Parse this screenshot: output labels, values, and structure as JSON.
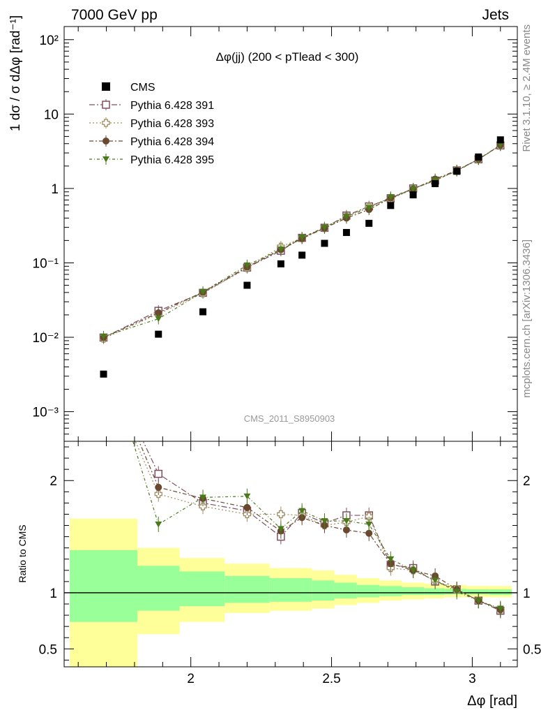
{
  "chart_data": {
    "type": "scatter",
    "title": "Δφ(jj) (200 < pTlead <  300)",
    "top_left_label": "7000 GeV pp",
    "top_right_label": "Jets",
    "ylabel_main": "1 dσ / σ dΔφ [rad⁻¹]",
    "ylabel_ratio": "Ratio to CMS",
    "xlabel": "Δφ [rad]",
    "analysis_label": "CMS_2011_S8950903",
    "side_label_top": "Rivet 3.1.10, ≥ 2.4M events",
    "side_label_bottom": "mcplots.cern.ch [arXiv:1306.3436]",
    "x_range": [
      1.55,
      3.16
    ],
    "y_range_main": [
      0.0004,
      150
    ],
    "y_scale_main": "log",
    "y_range_ratio": [
      0.34,
      2.35
    ],
    "x_ticks": [
      "2",
      "2.5",
      "3"
    ],
    "y_ticks_main": [
      "10⁻³",
      "10⁻²",
      "10⁻¹",
      "1",
      "10",
      "10²"
    ],
    "y_ticks_ratio": [
      "0.5",
      "1",
      "2"
    ],
    "legend_position": "top-left",
    "colors": {
      "s391": "#7d5060",
      "s393": "#a08a60",
      "s394": "#6a4830",
      "s395": "#4a7a1a",
      "band_inner": "#99ff99",
      "band_outer": "#ffff99"
    },
    "legend": [
      "CMS",
      "Pythia 6.428 391",
      "Pythia 6.428 393",
      "Pythia 6.428 394",
      "Pythia 6.428 395"
    ],
    "x": [
      1.69,
      1.885,
      2.043,
      2.2,
      2.32,
      2.395,
      2.475,
      2.553,
      2.633,
      2.71,
      2.79,
      2.868,
      2.945,
      3.022,
      3.1
    ],
    "cms": [
      0.0032,
      0.011,
      0.022,
      0.05,
      0.097,
      0.127,
      0.183,
      0.256,
      0.34,
      0.59,
      0.82,
      1.16,
      1.7,
      2.65,
      4.5
    ],
    "series": [
      {
        "name": "Pythia 6.428 391",
        "ratio": [
          3.1,
          2.06,
          1.8,
          1.73,
          1.5,
          1.71,
          1.62,
          1.69,
          1.69,
          1.25,
          1.22,
          1.1,
          1.03,
          0.93,
          0.84
        ]
      },
      {
        "name": "Pythia 6.428 393",
        "ratio": [
          3.0,
          1.88,
          1.77,
          1.7,
          1.7,
          1.69,
          1.6,
          1.63,
          1.68,
          1.22,
          1.2,
          1.11,
          1.03,
          0.93,
          0.85
        ]
      },
      {
        "name": "Pythia 6.428 394",
        "ratio": [
          3.1,
          1.94,
          1.84,
          1.76,
          1.55,
          1.67,
          1.6,
          1.56,
          1.53,
          1.26,
          1.2,
          1.15,
          1.03,
          0.93,
          0.85
        ]
      },
      {
        "name": "Pythia 6.428 395",
        "ratio": [
          3.2,
          1.61,
          1.85,
          1.86,
          1.57,
          1.73,
          1.64,
          1.64,
          1.61,
          1.3,
          1.2,
          1.11,
          1.01,
          0.93,
          0.86
        ]
      }
    ],
    "bands": [
      {
        "x0": 1.57,
        "x1": 1.81,
        "inner": [
          0.74,
          1.38
        ],
        "outer": [
          0.3,
          1.66
        ]
      },
      {
        "x0": 1.81,
        "x1": 1.96,
        "inner": [
          0.84,
          1.24
        ],
        "outer": [
          0.63,
          1.4
        ]
      },
      {
        "x0": 1.96,
        "x1": 2.12,
        "inner": [
          0.88,
          1.19
        ],
        "outer": [
          0.74,
          1.31
        ]
      },
      {
        "x0": 2.12,
        "x1": 2.28,
        "inner": [
          0.91,
          1.15
        ],
        "outer": [
          0.82,
          1.26
        ]
      },
      {
        "x0": 2.28,
        "x1": 2.43,
        "inner": [
          0.92,
          1.13
        ],
        "outer": [
          0.84,
          1.22
        ]
      },
      {
        "x0": 2.43,
        "x1": 2.51,
        "inner": [
          0.93,
          1.11
        ],
        "outer": [
          0.86,
          1.2
        ]
      },
      {
        "x0": 2.51,
        "x1": 2.59,
        "inner": [
          0.95,
          1.09
        ],
        "outer": [
          0.89,
          1.16
        ]
      },
      {
        "x0": 2.59,
        "x1": 2.67,
        "inner": [
          0.96,
          1.07
        ],
        "outer": [
          0.91,
          1.13
        ]
      },
      {
        "x0": 2.67,
        "x1": 2.75,
        "inner": [
          0.97,
          1.06
        ],
        "outer": [
          0.93,
          1.11
        ]
      },
      {
        "x0": 2.75,
        "x1": 2.83,
        "inner": [
          0.98,
          1.05
        ],
        "outer": [
          0.94,
          1.09
        ]
      },
      {
        "x0": 2.83,
        "x1": 2.9,
        "inner": [
          0.98,
          1.04
        ],
        "outer": [
          0.95,
          1.08
        ]
      },
      {
        "x0": 2.9,
        "x1": 2.98,
        "inner": [
          0.985,
          1.035
        ],
        "outer": [
          0.96,
          1.07
        ]
      },
      {
        "x0": 2.98,
        "x1": 3.06,
        "inner": [
          0.985,
          1.03
        ],
        "outer": [
          0.96,
          1.06
        ]
      },
      {
        "x0": 3.06,
        "x1": 3.14,
        "inner": [
          0.98,
          1.03
        ],
        "outer": [
          0.96,
          1.06
        ]
      }
    ]
  }
}
